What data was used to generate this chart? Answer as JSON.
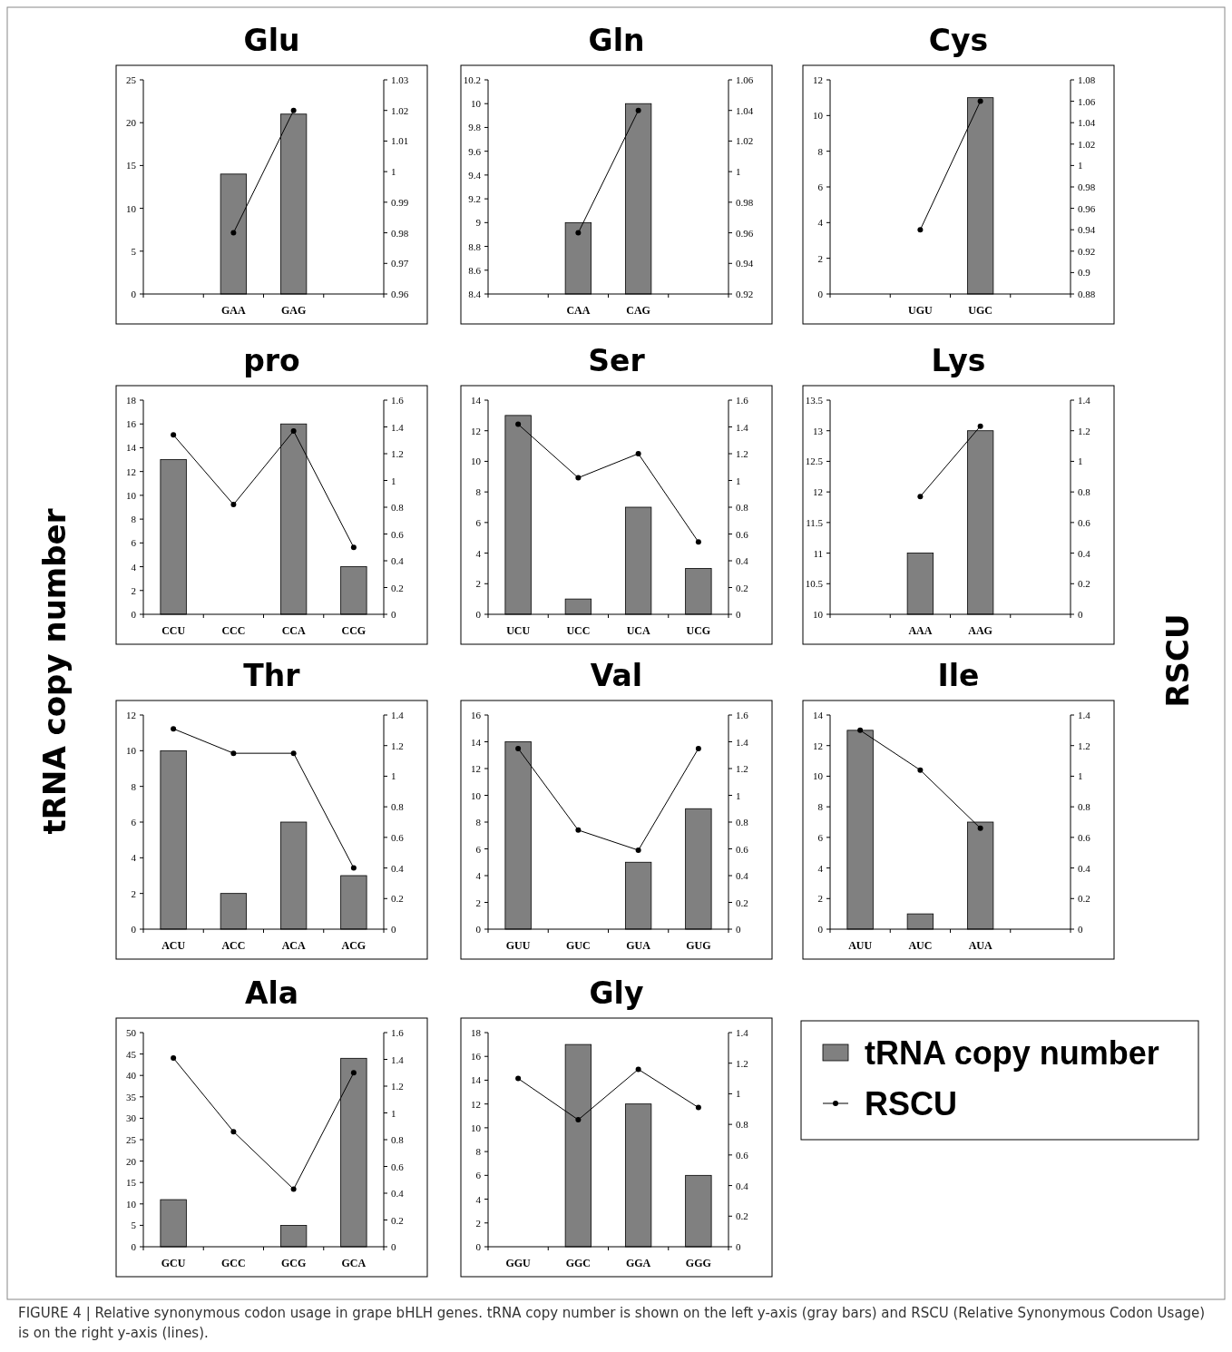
{
  "chart_data": [
    {
      "type": "bar",
      "title": "Glu",
      "categories": [
        null,
        "GAA",
        "GAG",
        null
      ],
      "ylim": [
        0,
        25
      ],
      "yticks": [
        0,
        5,
        10,
        15,
        20,
        25
      ],
      "y2lim": [
        0.96,
        1.03
      ],
      "y2ticks": [
        0.96,
        0.97,
        0.98,
        0.99,
        1,
        1.01,
        1.02,
        1.03
      ],
      "marker": "circle",
      "series": [
        {
          "type": "bar",
          "color": "#808080",
          "values": [
            null,
            14,
            21,
            null
          ]
        },
        {
          "type": "line",
          "axis": "y2",
          "color": "#000000",
          "values": [
            null,
            0.98,
            1.02,
            null
          ]
        }
      ]
    },
    {
      "type": "bar",
      "title": "Gln",
      "categories": [
        null,
        "CAA",
        "CAG",
        null
      ],
      "ylim": [
        8.4,
        10.2
      ],
      "yticks": [
        8.4,
        8.6,
        8.8,
        9,
        9.2,
        9.4,
        9.6,
        9.8,
        10,
        10.2
      ],
      "y2lim": [
        0.92,
        1.06
      ],
      "y2ticks": [
        0.92,
        0.94,
        0.96,
        0.98,
        1,
        1.02,
        1.04,
        1.06
      ],
      "marker": "circle",
      "series": [
        {
          "type": "bar",
          "color": "#808080",
          "values": [
            null,
            9,
            10,
            null
          ]
        },
        {
          "type": "line",
          "axis": "y2",
          "color": "#000000",
          "values": [
            null,
            0.96,
            1.04,
            null
          ]
        }
      ]
    },
    {
      "type": "bar",
      "title": "Cys",
      "categories": [
        null,
        "UGU",
        "UGC",
        null
      ],
      "ylim": [
        0,
        12
      ],
      "yticks": [
        0,
        2,
        4,
        6,
        8,
        10,
        12
      ],
      "y2lim": [
        0.88,
        1.08
      ],
      "y2ticks": [
        0.88,
        0.9,
        0.92,
        0.94,
        0.96,
        0.98,
        1,
        1.02,
        1.04,
        1.06,
        1.08
      ],
      "marker": "circle",
      "series": [
        {
          "type": "bar",
          "color": "#808080",
          "values": [
            null,
            0,
            11,
            null
          ]
        },
        {
          "type": "line",
          "axis": "y2",
          "color": "#000000",
          "values": [
            null,
            0.94,
            1.06,
            null
          ]
        }
      ]
    },
    {
      "type": "bar",
      "title": "pro",
      "ylabel": "tRNA copy number",
      "categories": [
        "CCU",
        "CCC",
        "CCA",
        "CCG"
      ],
      "ylim": [
        0,
        18
      ],
      "yticks": [
        0,
        2,
        4,
        6,
        8,
        10,
        12,
        14,
        16,
        18
      ],
      "y2lim": [
        0,
        1.6
      ],
      "y2ticks": [
        0,
        0.2,
        0.4,
        0.6,
        0.8,
        1,
        1.2,
        1.4,
        1.6
      ],
      "marker": "circle",
      "series": [
        {
          "type": "bar",
          "color": "#808080",
          "values": [
            13,
            0,
            16,
            4
          ]
        },
        {
          "type": "line",
          "axis": "y2",
          "color": "#000000",
          "values": [
            1.34,
            0.82,
            1.37,
            0.5
          ]
        }
      ]
    },
    {
      "type": "bar",
      "title": "Ser",
      "categories": [
        "UCU",
        "UCC",
        "UCA",
        "UCG"
      ],
      "ylim": [
        0,
        14
      ],
      "yticks": [
        0,
        2,
        4,
        6,
        8,
        10,
        12,
        14
      ],
      "y2lim": [
        0,
        1.6
      ],
      "y2ticks": [
        0,
        0.2,
        0.4,
        0.6,
        0.8,
        1,
        1.2,
        1.4,
        1.6
      ],
      "marker": "circle",
      "series": [
        {
          "type": "bar",
          "color": "#808080",
          "values": [
            13,
            1,
            7,
            3
          ]
        },
        {
          "type": "line",
          "axis": "y2",
          "color": "#000000",
          "values": [
            1.42,
            1.02,
            1.2,
            0.54
          ]
        }
      ]
    },
    {
      "type": "bar",
      "title": "Lys",
      "y2label": "RSCU",
      "categories": [
        null,
        "AAA",
        "AAG",
        null
      ],
      "ylim": [
        10,
        13.5
      ],
      "yticks": [
        10,
        10.5,
        11,
        11.5,
        12,
        12.5,
        13,
        13.5
      ],
      "y2lim": [
        0,
        1.4
      ],
      "y2ticks": [
        0,
        0.2,
        0.4,
        0.6,
        0.8,
        1,
        1.2,
        1.4
      ],
      "marker": "circle",
      "series": [
        {
          "type": "bar",
          "color": "#808080",
          "values": [
            null,
            11,
            13,
            null
          ]
        },
        {
          "type": "line",
          "axis": "y2",
          "color": "#000000",
          "values": [
            null,
            0.77,
            1.23,
            null
          ]
        }
      ]
    },
    {
      "type": "bar",
      "title": "Thr",
      "categories": [
        "ACU",
        "ACC",
        "ACA",
        "ACG"
      ],
      "ylim": [
        0,
        12
      ],
      "yticks": [
        0,
        2,
        4,
        6,
        8,
        10,
        12
      ],
      "y2lim": [
        0,
        1.4
      ],
      "y2ticks": [
        0,
        0.2,
        0.4,
        0.6,
        0.8,
        1,
        1.2,
        1.4
      ],
      "marker": "circle",
      "series": [
        {
          "type": "bar",
          "color": "#808080",
          "values": [
            10,
            2,
            6,
            3
          ]
        },
        {
          "type": "line",
          "axis": "y2",
          "color": "#000000",
          "values": [
            1.31,
            1.15,
            1.15,
            0.4
          ]
        }
      ]
    },
    {
      "type": "bar",
      "title": "Val",
      "categories": [
        "GUU",
        "GUC",
        "GUA",
        "GUG"
      ],
      "ylim": [
        0,
        16
      ],
      "yticks": [
        0,
        2,
        4,
        6,
        8,
        10,
        12,
        14,
        16
      ],
      "y2lim": [
        0,
        1.6
      ],
      "y2ticks": [
        0,
        0.2,
        0.4,
        0.6,
        0.8,
        1,
        1.2,
        1.4,
        1.6
      ],
      "marker": "circle",
      "series": [
        {
          "type": "bar",
          "color": "#808080",
          "values": [
            14,
            0,
            5,
            9
          ]
        },
        {
          "type": "line",
          "axis": "y2",
          "color": "#000000",
          "values": [
            1.35,
            0.74,
            0.59,
            1.35
          ]
        }
      ]
    },
    {
      "type": "bar",
      "title": "Ile",
      "categories": [
        "AUU",
        "AUC",
        "AUA",
        null
      ],
      "ylim": [
        0,
        14
      ],
      "yticks": [
        0,
        2,
        4,
        6,
        8,
        10,
        12,
        14
      ],
      "y2lim": [
        0,
        1.4
      ],
      "y2ticks": [
        0,
        0.2,
        0.4,
        0.6,
        0.8,
        1,
        1.2,
        1.4
      ],
      "marker": "circle",
      "series": [
        {
          "type": "bar",
          "color": "#808080",
          "values": [
            13,
            1,
            7,
            null
          ]
        },
        {
          "type": "line",
          "axis": "y2",
          "color": "#000000",
          "values": [
            1.3,
            1.04,
            0.66,
            null
          ]
        }
      ]
    },
    {
      "type": "bar",
      "title": "Ala",
      "categories": [
        "GCU",
        "GCC",
        "GCG",
        "GCA"
      ],
      "ylim": [
        0,
        50
      ],
      "yticks": [
        0,
        5,
        10,
        15,
        20,
        25,
        30,
        35,
        40,
        45,
        50
      ],
      "y2lim": [
        0,
        1.6
      ],
      "y2ticks": [
        0,
        0.2,
        0.4,
        0.6,
        0.8,
        1,
        1.2,
        1.4,
        1.6
      ],
      "marker": "circle",
      "series": [
        {
          "type": "bar",
          "color": "#808080",
          "values": [
            11,
            0,
            5,
            44
          ]
        },
        {
          "type": "line",
          "axis": "y2",
          "color": "#000000",
          "values": [
            1.41,
            0.86,
            0.43,
            1.3
          ]
        }
      ]
    },
    {
      "type": "bar",
      "title": "Gly",
      "annotations": [
        "FIGURE 4 | Relative synonymous codon usage in grape bHLH genes. tRNA copy number is shown on the left y-axis (gray bars) and RSCU (Relative Synonymous Codon Usage) is on the right y-axis (lines)."
      ],
      "categories": [
        "GGU",
        "GGC",
        "GGA",
        "GGG"
      ],
      "ylim": [
        0,
        18
      ],
      "yticks": [
        0,
        2,
        4,
        6,
        8,
        10,
        12,
        14,
        16,
        18
      ],
      "y2lim": [
        0,
        1.4
      ],
      "y2ticks": [
        0,
        0.2,
        0.4,
        0.6,
        0.8,
        1,
        1.2,
        1.4
      ],
      "marker": "circle",
      "legend": "right",
      "series": [
        {
          "type": "bar",
          "name": "tRNA copy number",
          "color": "#808080",
          "values": [
            0,
            17,
            12,
            6
          ]
        },
        {
          "type": "line",
          "axis": "y2",
          "name": "RSCU",
          "color": "#000000",
          "values": [
            1.1,
            0.83,
            1.16,
            0.91
          ]
        }
      ]
    }
  ]
}
